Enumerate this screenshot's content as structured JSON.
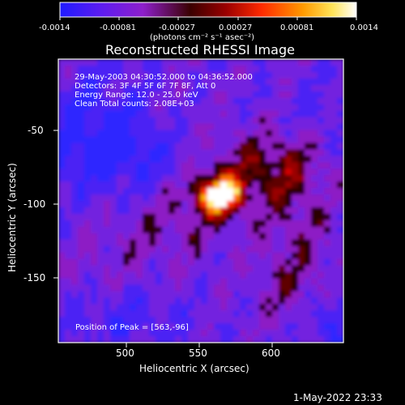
{
  "colorbar": {
    "tick_labels": [
      "-0.0014",
      "-0.00081",
      "-0.00027",
      "0.00027",
      "0.00081",
      "0.0014"
    ],
    "units_label": "(photons cm⁻² s⁻¹ asec⁻²)",
    "range": [
      -0.0014,
      0.0014
    ],
    "colors": [
      "#2020ff",
      "#7a1bd1",
      "#8a0000",
      "#ff2a00",
      "#ff9a00",
      "#ffff88",
      "#ffffff"
    ]
  },
  "title": "Reconstructed RHESSI Image",
  "info": {
    "time_range": "29-May-2003 04:30:52.000 to 04:36:52.000",
    "detectors": "Detectors: 3F 4F 5F 6F 7F 8F, Att 0",
    "energy_range": "Energy Range: 12.0 - 25.0 keV",
    "method_counts": "Clean     Total counts: 2.08E+03",
    "peak": "Position of Peak = [563,-96]"
  },
  "axes": {
    "xlabel": "Heliocentric X (arcsec)",
    "ylabel": "Heliocentric Y (arcsec)",
    "x_ticks": [
      "500",
      "550",
      "600"
    ],
    "y_ticks": [
      "-50",
      "-100",
      "-150"
    ]
  },
  "timestamp": "1-May-2022 23:33",
  "chart_data": {
    "type": "heatmap",
    "title": "Reconstructed RHESSI Image",
    "xlabel": "Heliocentric X (arcsec)",
    "ylabel": "Heliocentric Y (arcsec)",
    "xlim": [
      461,
      648
    ],
    "ylim": [
      -192,
      -22
    ],
    "x_ticks": [
      500,
      550,
      600
    ],
    "y_ticks": [
      -50,
      -100,
      -150
    ],
    "colorbar_range": [
      -0.0014,
      0.0014
    ],
    "peak": [
      563,
      -96
    ],
    "peak_value": 0.0014,
    "grid": false
  }
}
